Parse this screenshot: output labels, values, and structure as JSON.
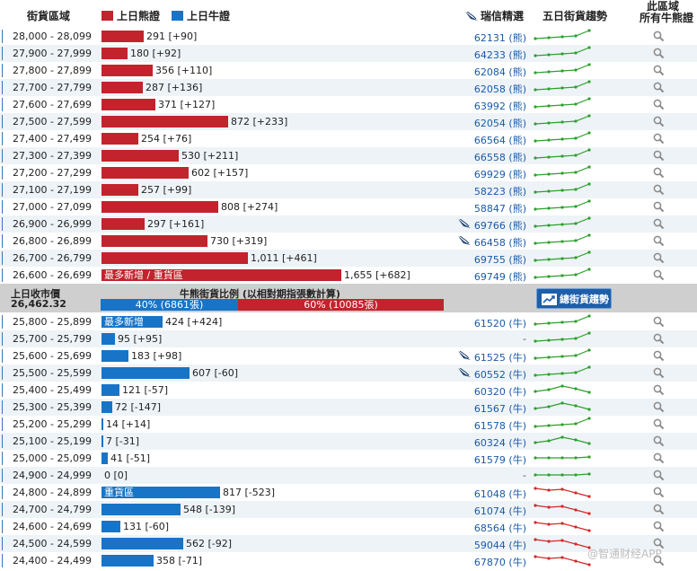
{
  "header": {
    "range": "街貨區域",
    "bear": "上日熊證",
    "bull": "上日牛證",
    "issuer": "瑞信精選",
    "trend": "五日街貨趨勢",
    "all1": "此區域",
    "all2": "所有牛熊證"
  },
  "colors": {
    "bear": "#c3232c",
    "bull": "#1874c7",
    "spark_up": "#2ca02c",
    "spark_down": "#d62728"
  },
  "max_count": 1655,
  "bear_rows": [
    {
      "range": "28,000 - 28,099",
      "count": 291,
      "value": "291 [+90]",
      "code": "62131 (熊)",
      "ubs": false,
      "trend": "up"
    },
    {
      "range": "27,900 - 27,999",
      "count": 180,
      "value": "180 [+92]",
      "code": "64233 (熊)",
      "ubs": false,
      "trend": "up"
    },
    {
      "range": "27,800 - 27,899",
      "count": 356,
      "value": "356 [+110]",
      "code": "62084 (熊)",
      "ubs": false,
      "trend": "up"
    },
    {
      "range": "27,700 - 27,799",
      "count": 287,
      "value": "287 [+136]",
      "code": "62058 (熊)",
      "ubs": false,
      "trend": "up"
    },
    {
      "range": "27,600 - 27,699",
      "count": 371,
      "value": "371 [+127]",
      "code": "63992 (熊)",
      "ubs": false,
      "trend": "up"
    },
    {
      "range": "27,500 - 27,599",
      "count": 872,
      "value": "872 [+233]",
      "code": "62054 (熊)",
      "ubs": false,
      "trend": "up"
    },
    {
      "range": "27,400 - 27,499",
      "count": 254,
      "value": "254 [+76]",
      "code": "66564 (熊)",
      "ubs": false,
      "trend": "up"
    },
    {
      "range": "27,300 - 27,399",
      "count": 530,
      "value": "530 [+211]",
      "code": "66558 (熊)",
      "ubs": false,
      "trend": "up"
    },
    {
      "range": "27,200 - 27,299",
      "count": 602,
      "value": "602 [+157]",
      "code": "69929 (熊)",
      "ubs": false,
      "trend": "up"
    },
    {
      "range": "27,100 - 27,199",
      "count": 257,
      "value": "257 [+99]",
      "code": "58223 (熊)",
      "ubs": false,
      "trend": "up"
    },
    {
      "range": "27,000 - 27,099",
      "count": 808,
      "value": "808 [+274]",
      "code": "58847 (熊)",
      "ubs": false,
      "trend": "up"
    },
    {
      "range": "26,900 - 26,999",
      "count": 297,
      "value": "297 [+161]",
      "code": "69766 (熊)",
      "ubs": true,
      "trend": "up"
    },
    {
      "range": "26,800 - 26,899",
      "count": 730,
      "value": "730 [+319]",
      "code": "66458 (熊)",
      "ubs": true,
      "trend": "up"
    },
    {
      "range": "26,700 - 26,799",
      "count": 1011,
      "value": "1,011 [+461]",
      "code": "69755 (熊)",
      "ubs": false,
      "trend": "up"
    },
    {
      "range": "26,600 - 26,699",
      "count": 1655,
      "value": "1,655 [+682]",
      "code": "69749 (熊)",
      "ubs": false,
      "trend": "up",
      "tag": "最多新增 / 重貨區"
    }
  ],
  "middle": {
    "close_label": "上日收市價",
    "close_value": "26,462.32",
    "ratio_title": "牛熊街貨比例 (以相對期指張數計算)",
    "bull_pct": 40,
    "bull_label": "40% (6861張)",
    "bear_label": "60% (10085張)",
    "button": "總街貨趨勢"
  },
  "bull_rows": [
    {
      "range": "25,800 - 25,899",
      "count": 424,
      "value": "424 [+424]",
      "code": "61520 (牛)",
      "ubs": false,
      "trend": "up",
      "tag": "最多新增"
    },
    {
      "range": "25,700 - 25,799",
      "count": 95,
      "value": "95 [+95]",
      "code": "-",
      "ubs": false,
      "trend": "up"
    },
    {
      "range": "25,600 - 25,699",
      "count": 183,
      "value": "183 [+98]",
      "code": "61525 (牛)",
      "ubs": true,
      "trend": "up"
    },
    {
      "range": "25,500 - 25,599",
      "count": 607,
      "value": "607 [-60]",
      "code": "60552 (牛)",
      "ubs": true,
      "trend": "up"
    },
    {
      "range": "25,400 - 25,499",
      "count": 121,
      "value": "121 [-57]",
      "code": "60320 (牛)",
      "ubs": false,
      "trend": "hump"
    },
    {
      "range": "25,300 - 25,399",
      "count": 72,
      "value": "72 [-147]",
      "code": "61567 (牛)",
      "ubs": false,
      "trend": "hump"
    },
    {
      "range": "25,200 - 25,299",
      "count": 14,
      "value": "14 [+14]",
      "code": "61578 (牛)",
      "ubs": false,
      "trend": "up"
    },
    {
      "range": "25,100 - 25,199",
      "count": 7,
      "value": "7 [-31]",
      "code": "60324 (牛)",
      "ubs": false,
      "trend": "hump"
    },
    {
      "range": "25,000 - 25,099",
      "count": 41,
      "value": "41 [-51]",
      "code": "61579 (牛)",
      "ubs": false,
      "trend": "flat"
    },
    {
      "range": "24,900 - 24,999",
      "count": 0,
      "value": "0 [0]",
      "code": "-",
      "ubs": false,
      "trend": "flat"
    },
    {
      "range": "24,800 - 24,899",
      "count": 817,
      "value": "817 [-523]",
      "code": "61048 (牛)",
      "ubs": false,
      "trend": "down",
      "tag": "重貨區"
    },
    {
      "range": "24,700 - 24,799",
      "count": 548,
      "value": "548 [-139]",
      "code": "61074 (牛)",
      "ubs": false,
      "trend": "down"
    },
    {
      "range": "24,600 - 24,699",
      "count": 131,
      "value": "131 [-60]",
      "code": "68564 (牛)",
      "ubs": false,
      "trend": "down"
    },
    {
      "range": "24,500 - 24,599",
      "count": 562,
      "value": "562 [-92]",
      "code": "59044 (牛)",
      "ubs": false,
      "trend": "down"
    },
    {
      "range": "24,400 - 24,499",
      "count": 358,
      "value": "358 [-71]",
      "code": "67870 (牛)",
      "ubs": false,
      "trend": "down"
    }
  ],
  "watermark": "@智通财经APP"
}
